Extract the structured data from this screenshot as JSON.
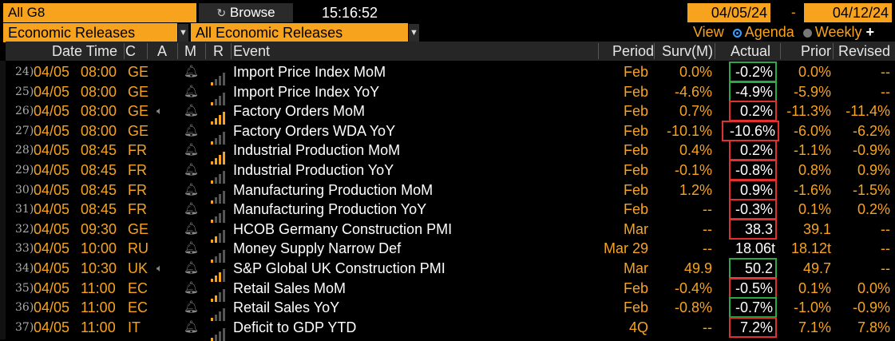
{
  "toolbar": {
    "group_value": "All G8",
    "browse_label": "Browse",
    "browse_icon": "refresh-icon",
    "time": "15:16:52",
    "date_start": "04/05/24",
    "date_sep": "-",
    "date_end": "04/12/24",
    "category_value": "Economic Releases",
    "filter_value": "All Economic Releases",
    "view_label": "View",
    "view_agenda": "Agenda",
    "view_weekly": "Weekly",
    "add_label": "+"
  },
  "columns": {
    "datetime": "Date Time",
    "country": "C",
    "a": "A",
    "m": "M",
    "r": "R",
    "event": "Event",
    "period": "Period",
    "survey": "Surv(M)",
    "actual": "Actual",
    "prior": "Prior",
    "revised": "Revised"
  },
  "colors": {
    "orange": "#f7a31e",
    "red_box": "#e03030",
    "green_box": "#2aa84a",
    "bar_on": "#f7a31e",
    "bar_off": "#555555"
  },
  "rows": [
    {
      "idx": "24)",
      "date": "04/05",
      "time": "08:00",
      "c": "GE",
      "audio": false,
      "bars": 1,
      "event": "Import Price Index MoM",
      "period": "Feb",
      "surv": "0.0%",
      "actual": "-0.2%",
      "box": "green",
      "prior": "0.0%",
      "revised": "--"
    },
    {
      "idx": "25)",
      "date": "04/05",
      "time": "08:00",
      "c": "GE",
      "audio": false,
      "bars": 1,
      "event": "Import Price Index YoY",
      "period": "Feb",
      "surv": "-4.6%",
      "actual": "-4.9%",
      "box": "green",
      "prior": "-5.9%",
      "revised": "--"
    },
    {
      "idx": "26)",
      "date": "04/05",
      "time": "08:00",
      "c": "GE",
      "audio": true,
      "bars": 4,
      "event": "Factory Orders MoM",
      "period": "Feb",
      "surv": "0.7%",
      "actual": "0.2%",
      "box": "red",
      "prior": "-11.3%",
      "revised": "-11.4%"
    },
    {
      "idx": "27)",
      "date": "04/05",
      "time": "08:00",
      "c": "GE",
      "audio": false,
      "bars": 1,
      "event": "Factory Orders WDA YoY",
      "period": "Feb",
      "surv": "-10.1%",
      "actual": "-10.6%",
      "box": "red",
      "prior": "-6.0%",
      "revised": "-6.2%"
    },
    {
      "idx": "28)",
      "date": "04/05",
      "time": "08:45",
      "c": "FR",
      "audio": false,
      "bars": 4,
      "event": "Industrial Production MoM",
      "period": "Feb",
      "surv": "0.4%",
      "actual": "0.2%",
      "box": "red",
      "prior": "-1.1%",
      "revised": "-0.9%"
    },
    {
      "idx": "29)",
      "date": "04/05",
      "time": "08:45",
      "c": "FR",
      "audio": false,
      "bars": 1,
      "event": "Industrial Production YoY",
      "period": "Feb",
      "surv": "-0.1%",
      "actual": "-0.8%",
      "box": "red",
      "prior": "0.8%",
      "revised": "0.9%"
    },
    {
      "idx": "30)",
      "date": "04/05",
      "time": "08:45",
      "c": "FR",
      "audio": false,
      "bars": 1,
      "event": "Manufacturing Production MoM",
      "period": "Feb",
      "surv": "1.2%",
      "actual": "0.9%",
      "box": "red",
      "prior": "-1.6%",
      "revised": "-1.5%"
    },
    {
      "idx": "31)",
      "date": "04/05",
      "time": "08:45",
      "c": "FR",
      "audio": false,
      "bars": 1,
      "event": "Manufacturing Production YoY",
      "period": "Feb",
      "surv": "--",
      "actual": "-0.3%",
      "box": "red",
      "prior": "0.1%",
      "revised": "0.2%"
    },
    {
      "idx": "32)",
      "date": "04/05",
      "time": "09:30",
      "c": "GE",
      "audio": false,
      "bars": 2,
      "event": "HCOB Germany Construction PMI",
      "period": "Mar",
      "surv": "--",
      "actual": "38.3",
      "box": "red",
      "prior": "39.1",
      "revised": "--"
    },
    {
      "idx": "33)",
      "date": "04/05",
      "time": "10:00",
      "c": "RU",
      "audio": false,
      "bars": 1,
      "event": "Money Supply Narrow Def",
      "period": "Mar 29",
      "surv": "--",
      "actual": "18.06t",
      "box": "none",
      "prior": "18.12t",
      "revised": "--"
    },
    {
      "idx": "34)",
      "date": "04/05",
      "time": "10:30",
      "c": "UK",
      "audio": true,
      "bars": 3,
      "event": "S&P Global UK Construction PMI",
      "period": "Mar",
      "surv": "49.9",
      "actual": "50.2",
      "box": "green",
      "prior": "49.7",
      "revised": "--"
    },
    {
      "idx": "35)",
      "date": "04/05",
      "time": "11:00",
      "c": "EC",
      "audio": false,
      "bars": 2,
      "event": "Retail Sales MoM",
      "period": "Feb",
      "surv": "-0.4%",
      "actual": "-0.5%",
      "box": "red",
      "prior": "0.1%",
      "revised": "0.0%"
    },
    {
      "idx": "36)",
      "date": "04/05",
      "time": "11:00",
      "c": "EC",
      "audio": false,
      "bars": 1,
      "event": "Retail Sales YoY",
      "period": "Feb",
      "surv": "-0.8%",
      "actual": "-0.7%",
      "box": "green",
      "prior": "-1.0%",
      "revised": "-0.9%"
    },
    {
      "idx": "37)",
      "date": "04/05",
      "time": "11:00",
      "c": "IT",
      "audio": false,
      "bars": 1,
      "event": "Deficit to GDP YTD",
      "period": "4Q",
      "surv": "--",
      "actual": "7.2%",
      "box": "red",
      "prior": "7.1%",
      "revised": "7.8%"
    }
  ]
}
